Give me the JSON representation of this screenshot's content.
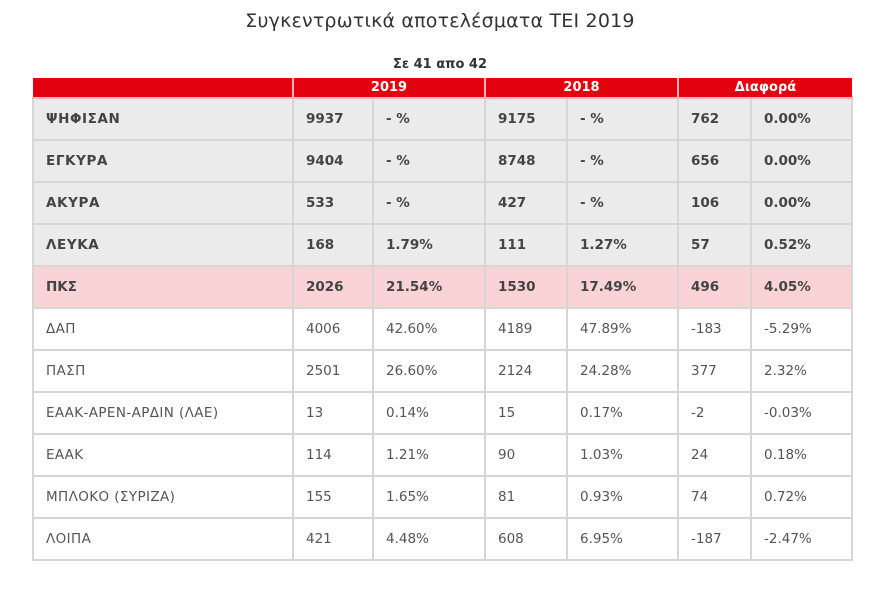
{
  "page": {
    "title": "Συγκεντρωτικά αποτελέσματα ΤΕΙ 2019",
    "subtitle": "Σε 41 απο 42"
  },
  "table": {
    "headers": [
      "",
      "2019",
      "2018",
      "Διαφορά"
    ],
    "colors": {
      "header_bg": "#e3000f",
      "summary_bg": "#ebebeb",
      "highlight_bg": "#fad3d6"
    },
    "rows": [
      {
        "label": "ΨΗΦΙΣΑΝ",
        "v2019": "9937",
        "p2019": "- %",
        "v2018": "9175",
        "p2018": "- %",
        "diff": "762",
        "pdiff": "0.00%"
      },
      {
        "label": "ΕΓΚΥΡΑ",
        "v2019": "9404",
        "p2019": "- %",
        "v2018": "8748",
        "p2018": "- %",
        "diff": "656",
        "pdiff": "0.00%"
      },
      {
        "label": "ΑΚΥΡΑ",
        "v2019": "533",
        "p2019": "- %",
        "v2018": "427",
        "p2018": "- %",
        "diff": "106",
        "pdiff": "0.00%"
      },
      {
        "label": "ΛΕΥΚΑ",
        "v2019": "168",
        "p2019": "1.79%",
        "v2018": "111",
        "p2018": "1.27%",
        "diff": "57",
        "pdiff": "0.52%"
      },
      {
        "label": "ΠΚΣ",
        "v2019": "2026",
        "p2019": "21.54%",
        "v2018": "1530",
        "p2018": "17.49%",
        "diff": "496",
        "pdiff": "4.05%"
      },
      {
        "label": "ΔΑΠ",
        "v2019": "4006",
        "p2019": "42.60%",
        "v2018": "4189",
        "p2018": "47.89%",
        "diff": "-183",
        "pdiff": "-5.29%"
      },
      {
        "label": "ΠΑΣΠ",
        "v2019": "2501",
        "p2019": "26.60%",
        "v2018": "2124",
        "p2018": "24.28%",
        "diff": "377",
        "pdiff": "2.32%"
      },
      {
        "label": "ΕΑΑΚ-ΑΡΕΝ-ΑΡΔΙΝ (ΛΑΕ)",
        "v2019": "13",
        "p2019": "0.14%",
        "v2018": "15",
        "p2018": "0.17%",
        "diff": "-2",
        "pdiff": "-0.03%"
      },
      {
        "label": "ΕΑΑΚ",
        "v2019": "114",
        "p2019": "1.21%",
        "v2018": "90",
        "p2018": "1.03%",
        "diff": "24",
        "pdiff": "0.18%"
      },
      {
        "label": "ΜΠΛΟΚΟ (ΣΥΡΙΖΑ)",
        "v2019": "155",
        "p2019": "1.65%",
        "v2018": "81",
        "p2018": "0.93%",
        "diff": "74",
        "pdiff": "0.72%"
      },
      {
        "label": "ΛΟΙΠΑ",
        "v2019": "421",
        "p2019": "4.48%",
        "v2018": "608",
        "p2018": "6.95%",
        "diff": "-187",
        "pdiff": "-2.47%"
      }
    ]
  }
}
